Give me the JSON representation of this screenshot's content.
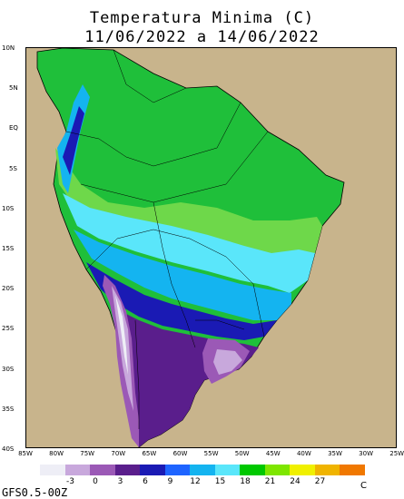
{
  "title_line1": "Temperatura Minima (C)",
  "title_line2": "11/06/2022 a 14/06/2022",
  "lat_labels": [
    "10N",
    "5N",
    "EQ",
    "5S",
    "10S",
    "15S",
    "20S",
    "25S",
    "30S",
    "35S",
    "40S"
  ],
  "lon_labels": [
    "85W",
    "80W",
    "75W",
    "70W",
    "65W",
    "60W",
    "55W",
    "50W",
    "45W",
    "40W",
    "35W",
    "30W",
    "25W"
  ],
  "legend": {
    "colors": [
      "#eeeef6",
      "#c8a8dc",
      "#9b59b6",
      "#5a1e8c",
      "#1a1ab4",
      "#1e64ff",
      "#14b4f0",
      "#5ae6fa",
      "#00c800",
      "#7ee600",
      "#f0f000",
      "#f0b400",
      "#f07800"
    ],
    "ticks": [
      "-3",
      "0",
      "3",
      "6",
      "9",
      "12",
      "15",
      "18",
      "21",
      "24",
      "27"
    ],
    "unit": "C"
  },
  "footer": "GFS0.5-00Z",
  "palette": {
    "ocean": "#c8b48c",
    "green": "#1fbf3a",
    "light_green": "#6ed84a",
    "light_blue": "#5ae6fa",
    "cyan": "#14b4f0",
    "blue": "#1a1ab4",
    "mid_blue": "#3a3ae0",
    "purple": "#5a1e8c",
    "violet": "#9b59b6",
    "lavender": "#c8a8dc",
    "pale": "#eeeef6"
  }
}
